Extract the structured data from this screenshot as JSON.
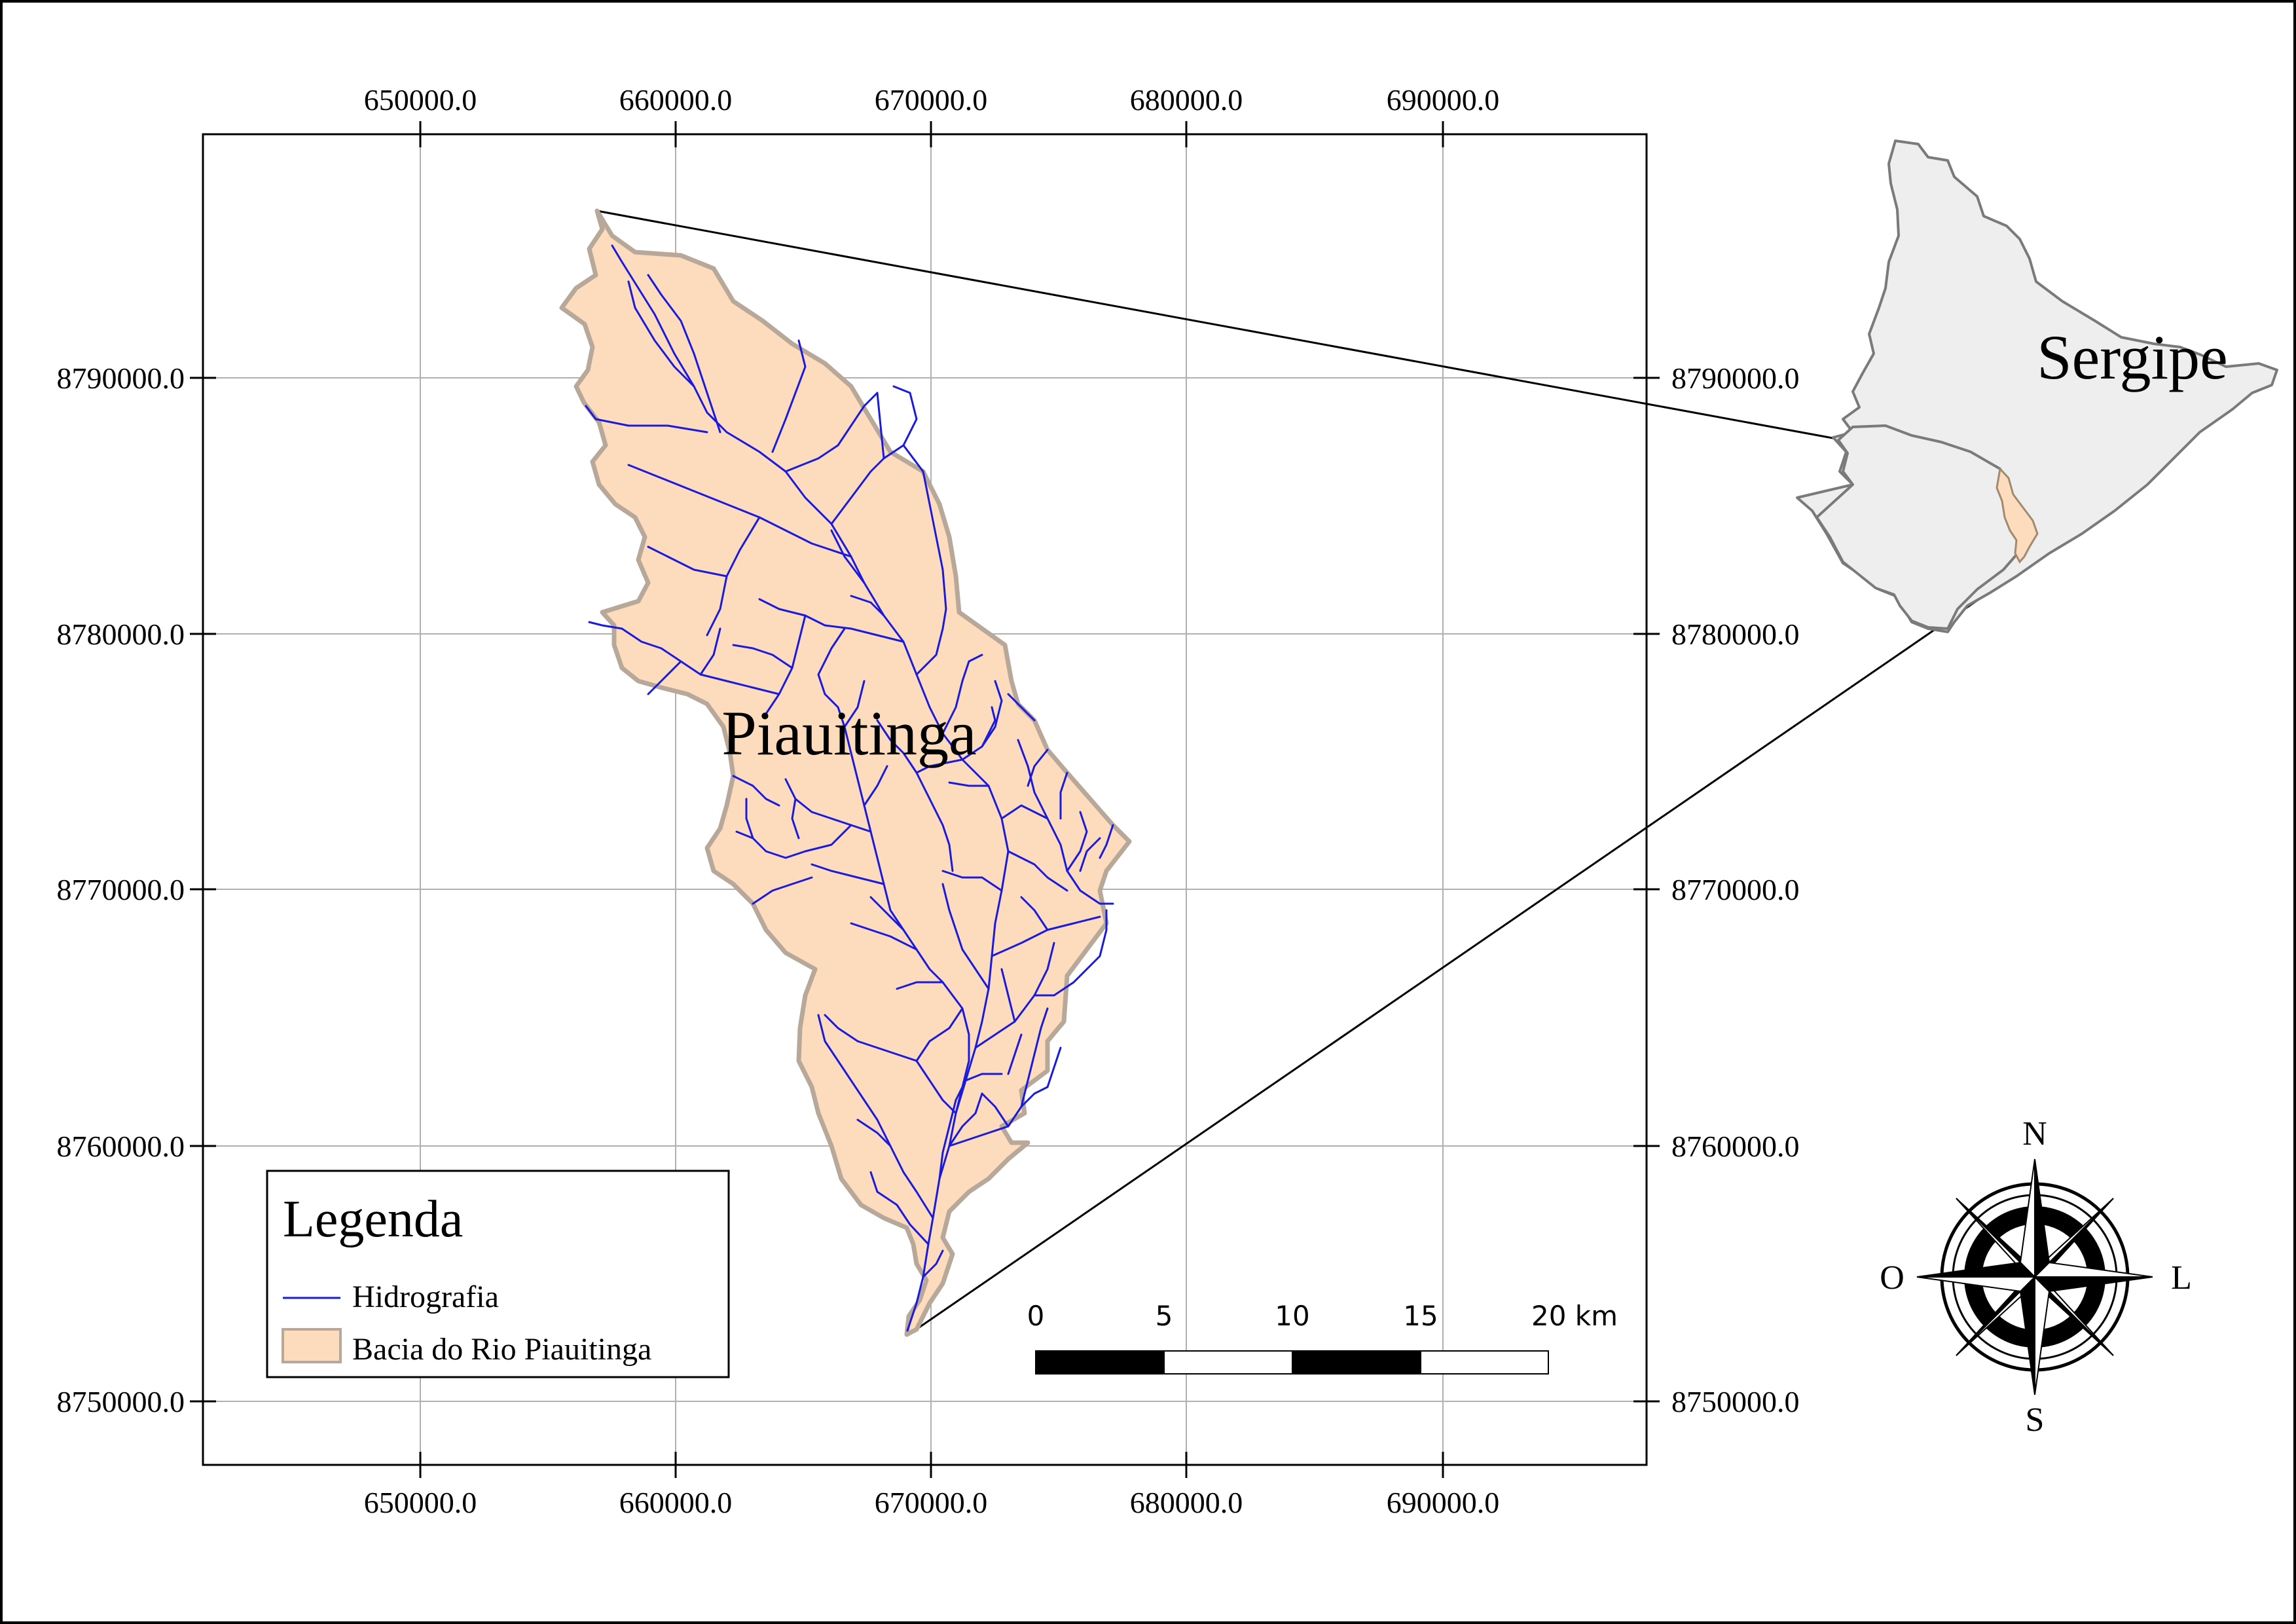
{
  "map": {
    "basin_label": "Piauitinga",
    "state_label": "Sergipe",
    "x_ticks": [
      "650000.0",
      "660000.0",
      "670000.0",
      "680000.0",
      "690000.0"
    ],
    "y_ticks": [
      "8790000.0",
      "8780000.0",
      "8770000.0",
      "8760000.0",
      "8750000.0"
    ]
  },
  "legend": {
    "title": "Legenda",
    "items": [
      {
        "label": "Hidrografia",
        "symbol": "line",
        "color": "#1a1adc"
      },
      {
        "label": "Bacia do Rio Piauitinga",
        "symbol": "fill",
        "color": "#fcdcbc"
      }
    ]
  },
  "scalebar": {
    "labels": [
      "0",
      "5",
      "10",
      "15",
      "20 km"
    ]
  },
  "compass": {
    "north": "N",
    "south": "S",
    "east": "L",
    "west": "O"
  },
  "colors": {
    "basin_fill": "#fcdcbc",
    "basin_stroke": "#b8a89a",
    "river": "#1a1adc",
    "state_fill": "#eeeeee",
    "state_stroke": "#7a7a7a",
    "grid": "#b0b0b0"
  }
}
